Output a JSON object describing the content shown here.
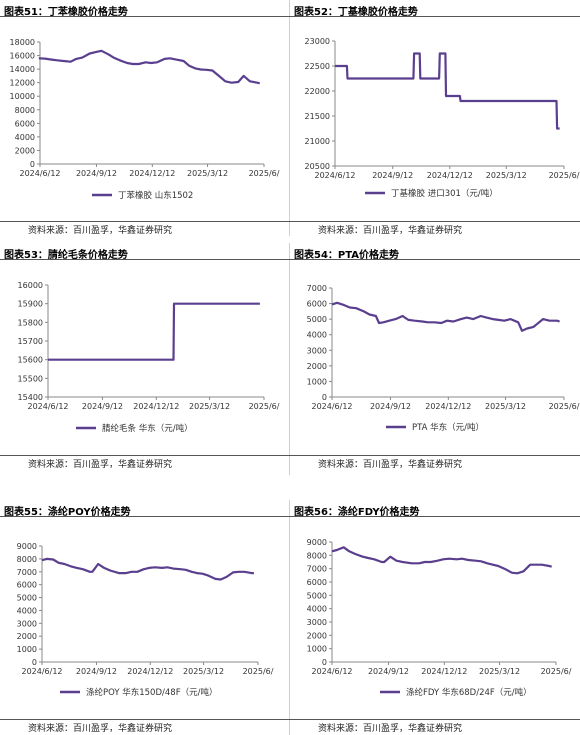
{
  "source_text": "资料来源：百川盈孚，华鑫证券研究",
  "line_color": "#5b3f8f",
  "chart_data": [
    {
      "title": "图表51：丁苯橡胶价格走势",
      "type": "line",
      "series": [
        {
          "name": "丁苯橡胶 山东1502",
          "x": [
            "2024-06-10",
            "2024-06-20",
            "2024-07-01",
            "2024-07-10",
            "2024-07-20",
            "2024-08-01",
            "2024-08-10",
            "2024-08-20",
            "2024-09-01",
            "2024-09-10",
            "2024-09-20",
            "2024-10-01",
            "2024-10-10",
            "2024-10-20",
            "2024-11-01",
            "2024-11-10",
            "2024-11-20",
            "2024-12-01",
            "2024-12-10",
            "2024-12-20",
            "2025-01-01",
            "2025-01-10",
            "2025-01-20",
            "2025-02-01",
            "2025-02-10",
            "2025-02-20",
            "2025-03-01",
            "2025-03-10",
            "2025-03-20",
            "2025-04-01",
            "2025-04-10",
            "2025-04-20",
            "2025-05-01",
            "2025-05-10",
            "2025-05-20",
            "2025-06-01",
            "2025-06-05"
          ],
          "y": [
            15600,
            15550,
            15400,
            15300,
            15200,
            15100,
            15500,
            15700,
            16300,
            16500,
            16700,
            16200,
            15700,
            15300,
            14900,
            14750,
            14750,
            15000,
            14900,
            15000,
            15500,
            15600,
            15400,
            15200,
            14500,
            14100,
            13950,
            13900,
            13800,
            12900,
            12200,
            12000,
            12100,
            13000,
            12200,
            12000,
            11900
          ]
        }
      ],
      "y_ticks": [
        0,
        2000,
        4000,
        6000,
        8000,
        10000,
        12000,
        14000,
        16000,
        18000
      ],
      "ylim": [
        0,
        18000
      ],
      "x_ticks": [
        "2024/6/12",
        "2024/9/12",
        "2024/12/12",
        "2025/3/12",
        "2025/6/"
      ],
      "legend": "bottom"
    },
    {
      "title": "图表52：丁基橡胶价格走势",
      "type": "line",
      "series": [
        {
          "name": "丁基橡胶 进口301（元/吨）",
          "x": [
            "2024-06-12",
            "2024-07-01",
            "2024-07-02",
            "2024-10-15",
            "2024-10-16",
            "2024-10-25",
            "2024-10-26",
            "2024-11-25",
            "2024-11-26",
            "2024-12-05",
            "2024-12-06",
            "2024-12-18",
            "2024-12-19",
            "2024-12-28",
            "2024-12-29",
            "2025-05-31",
            "2025-06-01",
            "2025-06-05"
          ],
          "y": [
            22500,
            22500,
            22250,
            22250,
            22750,
            22750,
            22250,
            22250,
            22750,
            22750,
            21900,
            21900,
            21900,
            21900,
            21800,
            21800,
            21250,
            21250
          ]
        }
      ],
      "y_ticks": [
        20500,
        21000,
        21500,
        22000,
        22500,
        23000
      ],
      "ylim": [
        20500,
        23000
      ],
      "x_ticks": [
        "2024/6/12",
        "2024/9/12",
        "2024/12/12",
        "2025/3/12",
        "2025/6/"
      ],
      "legend": "bottom"
    },
    {
      "title": "图表53：腈纶毛条价格走势",
      "type": "line",
      "series": [
        {
          "name": "腈纶毛条 华东（元/吨）",
          "x": [
            "2024-06-12",
            "2025-01-10",
            "2025-01-11",
            "2025-06-05"
          ],
          "y": [
            15600,
            15600,
            15900,
            15900
          ]
        }
      ],
      "y_ticks": [
        15400,
        15500,
        15600,
        15700,
        15800,
        15900,
        16000
      ],
      "ylim": [
        15400,
        16000
      ],
      "x_ticks": [
        "2024/6/12",
        "2024/9/12",
        "2024/12/12",
        "2025/3/12",
        "2025/6/"
      ],
      "legend": "bottom"
    },
    {
      "title": "图表54：PTA价格走势",
      "type": "line",
      "series": [
        {
          "name": "PTA 华东（元/吨）",
          "x": [
            "2024-06-12",
            "2024-06-20",
            "2024-07-01",
            "2024-07-10",
            "2024-07-20",
            "2024-08-01",
            "2024-08-10",
            "2024-08-20",
            "2024-08-25",
            "2024-09-01",
            "2024-09-10",
            "2024-09-20",
            "2024-10-01",
            "2024-10-10",
            "2024-10-20",
            "2024-11-01",
            "2024-11-10",
            "2024-11-20",
            "2024-12-01",
            "2024-12-10",
            "2024-12-20",
            "2025-01-01",
            "2025-01-10",
            "2025-01-20",
            "2025-02-01",
            "2025-02-10",
            "2025-02-20",
            "2025-03-01",
            "2025-03-10",
            "2025-03-20",
            "2025-04-01",
            "2025-04-07",
            "2025-04-15",
            "2025-04-25",
            "2025-05-01",
            "2025-05-10",
            "2025-05-20",
            "2025-06-01",
            "2025-06-05"
          ],
          "y": [
            5950,
            6050,
            5900,
            5750,
            5700,
            5500,
            5300,
            5200,
            4750,
            4800,
            4900,
            5000,
            5200,
            4950,
            4900,
            4850,
            4800,
            4800,
            4750,
            4900,
            4850,
            5000,
            5100,
            5000,
            5200,
            5100,
            5000,
            4950,
            4900,
            5000,
            4800,
            4250,
            4400,
            4500,
            4700,
            5000,
            4900,
            4900,
            4850
          ]
        }
      ],
      "y_ticks": [
        0,
        1000,
        2000,
        3000,
        4000,
        5000,
        6000,
        7000
      ],
      "ylim": [
        0,
        7000
      ],
      "x_ticks": [
        "2024/6/12",
        "2024/9/12",
        "2024/12/12",
        "2025/3/12",
        "2025/6/"
      ],
      "legend": "bottom"
    },
    {
      "title": "图表55：涤纶POY价格走势",
      "type": "line",
      "series": [
        {
          "name": "涤纶POY 华东150D/48F（元/吨）",
          "x": [
            "2024-06-12",
            "2024-06-20",
            "2024-07-01",
            "2024-07-10",
            "2024-07-20",
            "2024-08-01",
            "2024-08-10",
            "2024-08-20",
            "2024-09-01",
            "2024-09-05",
            "2024-09-15",
            "2024-09-25",
            "2024-10-05",
            "2024-10-20",
            "2024-11-01",
            "2024-11-10",
            "2024-11-20",
            "2024-12-01",
            "2024-12-10",
            "2024-12-20",
            "2025-01-01",
            "2025-01-10",
            "2025-01-20",
            "2025-02-01",
            "2025-02-10",
            "2025-02-20",
            "2025-03-01",
            "2025-03-10",
            "2025-03-20",
            "2025-04-01",
            "2025-04-10",
            "2025-04-20",
            "2025-05-01",
            "2025-05-10",
            "2025-05-20",
            "2025-06-01",
            "2025-06-05"
          ],
          "y": [
            7900,
            8000,
            7950,
            7700,
            7600,
            7400,
            7300,
            7200,
            7000,
            7000,
            7600,
            7300,
            7100,
            6900,
            6900,
            7000,
            7000,
            7200,
            7300,
            7350,
            7300,
            7350,
            7250,
            7200,
            7150,
            7000,
            6900,
            6850,
            6700,
            6450,
            6400,
            6600,
            6950,
            7000,
            7000,
            6900,
            6900
          ]
        }
      ],
      "y_ticks": [
        0,
        1000,
        2000,
        3000,
        4000,
        5000,
        6000,
        7000,
        8000,
        9000
      ],
      "ylim": [
        0,
        9000
      ],
      "x_ticks": [
        "2024/6/12",
        "2024/9/12",
        "2024/12/12",
        "2025/3/12",
        "2025/6/"
      ],
      "legend": "bottom"
    },
    {
      "title": "图表56：涤纶FDY价格走势",
      "type": "line",
      "series": [
        {
          "name": "涤纶FDY 华东68D/24F（元/吨）",
          "x": [
            "2024-06-12",
            "2024-06-20",
            "2024-07-01",
            "2024-07-10",
            "2024-07-20",
            "2024-08-01",
            "2024-08-10",
            "2024-08-20",
            "2024-09-01",
            "2024-09-05",
            "2024-09-15",
            "2024-09-25",
            "2024-10-05",
            "2024-10-20",
            "2024-11-01",
            "2024-11-10",
            "2024-11-20",
            "2024-12-01",
            "2024-12-10",
            "2024-12-20",
            "2025-01-01",
            "2025-01-10",
            "2025-01-20",
            "2025-02-01",
            "2025-02-10",
            "2025-02-20",
            "2025-03-01",
            "2025-03-10",
            "2025-03-20",
            "2025-04-01",
            "2025-04-10",
            "2025-04-20",
            "2025-05-01",
            "2025-05-10",
            "2025-05-20",
            "2025-06-01",
            "2025-06-05"
          ],
          "y": [
            8300,
            8400,
            8600,
            8300,
            8100,
            7900,
            7800,
            7700,
            7500,
            7500,
            7900,
            7600,
            7500,
            7400,
            7400,
            7500,
            7500,
            7600,
            7700,
            7750,
            7700,
            7750,
            7650,
            7600,
            7550,
            7400,
            7300,
            7200,
            7000,
            6700,
            6650,
            6800,
            7300,
            7300,
            7300,
            7200,
            7150
          ]
        }
      ],
      "y_ticks": [
        0,
        1000,
        2000,
        3000,
        4000,
        5000,
        6000,
        7000,
        8000,
        9000
      ],
      "ylim": [
        0,
        9000
      ],
      "x_ticks": [
        "2024/6/12",
        "2024/9/12",
        "2024/12/12",
        "2025/3/12",
        "2025/6/"
      ],
      "legend": "bottom"
    }
  ]
}
